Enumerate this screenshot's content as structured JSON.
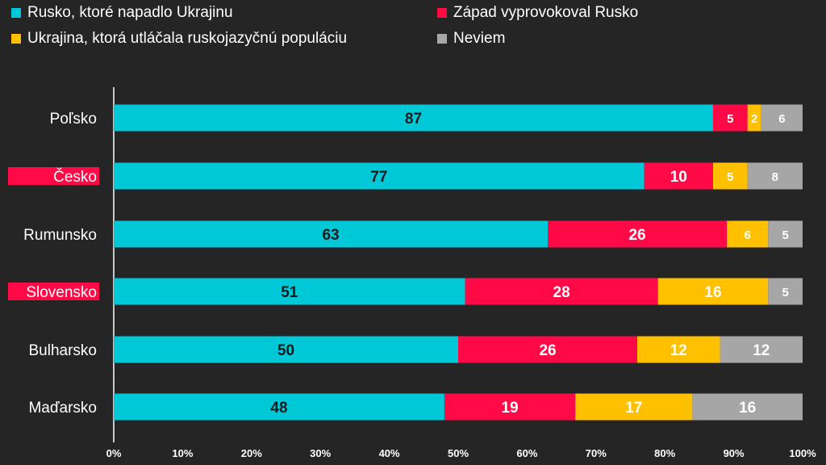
{
  "chart_data": {
    "type": "bar",
    "orientation": "horizontal",
    "stacked": true,
    "categories": [
      "Poľsko",
      "Česko",
      "Rumunsko",
      "Slovensko",
      "Bulharsko",
      "Maďarsko"
    ],
    "highlighted_categories": [
      "Česko",
      "Slovensko"
    ],
    "series": [
      {
        "name": "Rusko, ktoré napadlo Ukrajinu",
        "color": "#00c8d7",
        "label_color": "#1a1a1a",
        "values": [
          87,
          77,
          63,
          51,
          50,
          48
        ]
      },
      {
        "name": "Západ vyprovokoval Rusko",
        "color": "#ff0a46",
        "label_color": "#ffffff",
        "values": [
          5,
          10,
          26,
          28,
          26,
          19
        ]
      },
      {
        "name": "Ukrajina, ktorá utláčala ruskojazyčnú populáciu",
        "color": "#ffc000",
        "label_color": "#ffffff",
        "values": [
          2,
          5,
          6,
          16,
          12,
          17
        ]
      },
      {
        "name": "Neviem",
        "color": "#a6a6a6",
        "label_color": "#ffffff",
        "values": [
          6,
          8,
          5,
          5,
          12,
          16
        ]
      }
    ],
    "xlim": [
      0,
      100
    ],
    "x_ticks": [
      "0%",
      "10%",
      "20%",
      "30%",
      "40%",
      "50%",
      "60%",
      "70%",
      "80%",
      "90%",
      "100%"
    ],
    "title": "",
    "xlabel": "",
    "ylabel": "",
    "legend_position": "top",
    "colors": {
      "background": "#252525",
      "highlight": "#ff0a46",
      "axis": "#ffffff"
    }
  }
}
